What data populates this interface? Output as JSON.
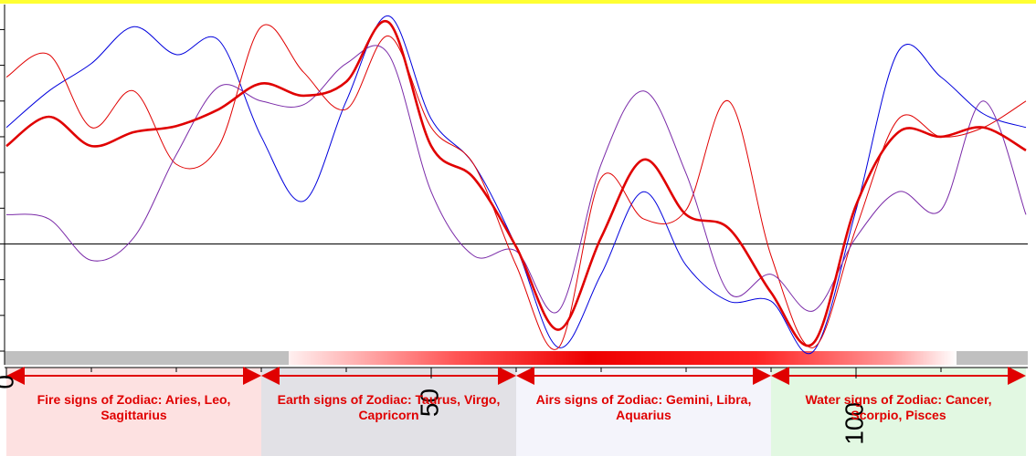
{
  "chart_data": {
    "type": "line",
    "x": [
      0,
      5,
      10,
      15,
      20,
      25,
      30,
      35,
      40,
      45,
      50,
      55,
      60,
      65,
      70,
      75,
      80,
      85,
      90,
      95,
      100,
      105,
      110,
      115,
      120
    ],
    "xlim": [
      0,
      120
    ],
    "xticks": [
      0,
      50,
      100
    ],
    "xminor": [
      10,
      20,
      30,
      40,
      60,
      70,
      80,
      90,
      110
    ],
    "ylim": [
      -3,
      6.7
    ],
    "yticks": [
      -3,
      -2,
      -1,
      0,
      1,
      2,
      3,
      4,
      5,
      6
    ],
    "series": [
      {
        "color": "#0000dd",
        "width": 1,
        "values": [
          3.26,
          4.28,
          5.05,
          6.08,
          5.3,
          5.7,
          3.0,
          1.2,
          4.0,
          6.38,
          3.5,
          2.23,
          -0.08,
          -2.9,
          -0.85,
          1.46,
          -0.6,
          -1.6,
          -1.6,
          -3.0,
          0.95,
          5.4,
          4.67,
          3.64,
          3.26
        ]
      },
      {
        "color": "#e00000",
        "width": 1,
        "values": [
          4.67,
          5.3,
          3.26,
          4.28,
          2.23,
          2.74,
          6.08,
          4.8,
          3.77,
          5.82,
          3.26,
          2.23,
          -0.6,
          -2.9,
          1.85,
          0.7,
          0.95,
          4.0,
          -0.33,
          -2.9,
          0.44,
          3.5,
          3.0,
          3.26,
          4.0
        ]
      },
      {
        "color": "#7a2aa8",
        "width": 1,
        "values": [
          0.82,
          0.7,
          -0.46,
          0.18,
          2.5,
          4.4,
          4.0,
          3.9,
          5.05,
          5.3,
          1.46,
          -0.33,
          -0.2,
          -1.87,
          2.23,
          4.28,
          1.97,
          -1.36,
          -0.85,
          -1.87,
          0.18,
          1.46,
          0.95,
          4.0,
          0.82
        ]
      },
      {
        "color": "#e00000",
        "width": 2.6,
        "values": [
          2.74,
          3.56,
          2.74,
          3.13,
          3.3,
          3.77,
          4.49,
          4.15,
          4.54,
          6.2,
          2.74,
          1.85,
          -0.08,
          -2.4,
          0.18,
          2.36,
          0.82,
          0.44,
          -1.36,
          -2.77,
          1.08,
          3.13,
          3.0,
          3.26,
          2.62
        ]
      }
    ],
    "annotations": [
      {
        "text": "Fire signs of Zodiac: Aries, Leo, Sagittarius",
        "x_range": [
          0,
          30
        ],
        "background": "#fde1e1"
      },
      {
        "text": "Earth signs of Zodiac: Taurus, Virgo, Capricorn",
        "x_range": [
          30,
          60
        ],
        "background": "#e2e1e6"
      },
      {
        "text": "Airs signs of Zodiac: Gemini, Libra, Aquarius",
        "x_range": [
          60,
          90
        ],
        "background": "#f4f4fb"
      },
      {
        "text": "Water signs of Zodiac: Cancer, Scorpio, Pisces",
        "x_range": [
          90,
          120
        ],
        "background": "#e2f8e2"
      }
    ]
  }
}
